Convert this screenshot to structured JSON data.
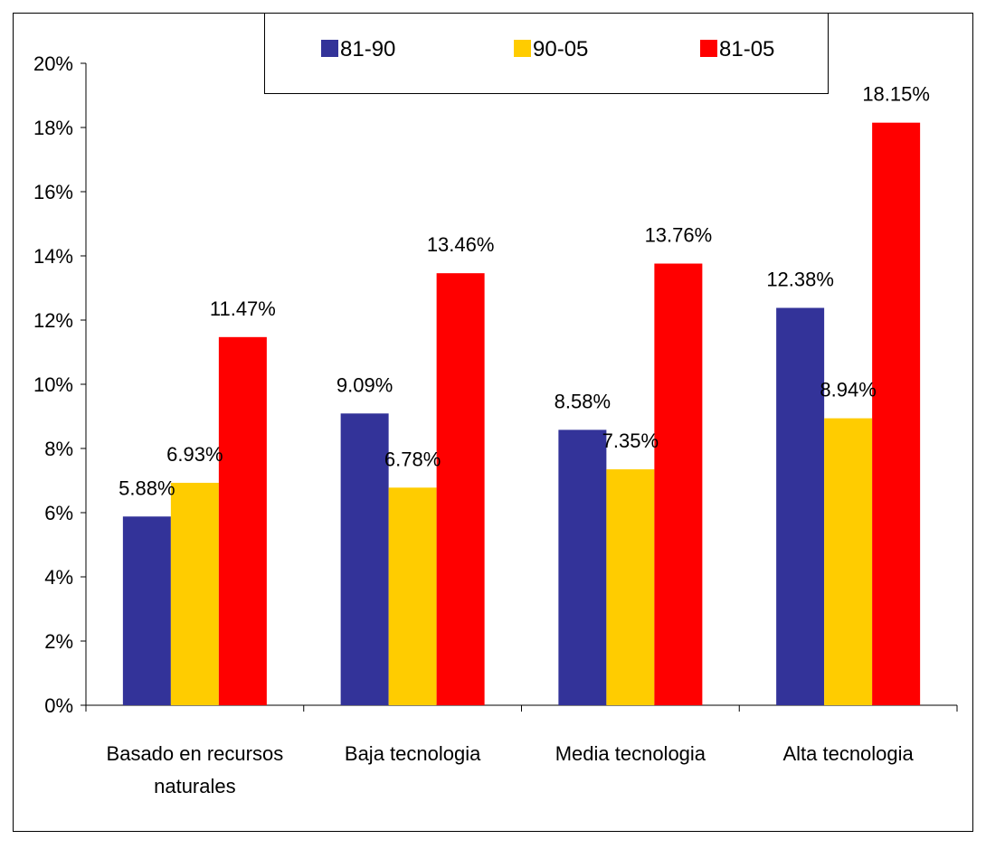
{
  "chart_data": {
    "type": "bar",
    "categories": [
      [
        "Basado en recursos",
        "naturales"
      ],
      [
        "Baja tecnologia"
      ],
      [
        "Media tecnologia"
      ],
      [
        "Alta tecnologia"
      ]
    ],
    "series": [
      {
        "name": "81-90",
        "color": "#333399",
        "values": [
          5.88,
          9.09,
          8.58,
          12.38
        ],
        "labels": [
          "5.88%",
          "9.09%",
          "8.58%",
          "12.38%"
        ]
      },
      {
        "name": "90-05",
        "color": "#FFCC00",
        "values": [
          6.93,
          6.78,
          7.35,
          8.94
        ],
        "labels": [
          "6.93%",
          "6.78%",
          "7.35%",
          "8.94%"
        ]
      },
      {
        "name": "81-05",
        "color": "#FF0000",
        "values": [
          11.47,
          13.46,
          13.76,
          18.15
        ],
        "labels": [
          "11.47%",
          "13.46%",
          "13.76%",
          "18.15%"
        ]
      }
    ],
    "y_ticks": [
      "0%",
      "2%",
      "4%",
      "6%",
      "8%",
      "10%",
      "12%",
      "14%",
      "16%",
      "18%",
      "20%"
    ],
    "ylim": [
      0,
      20
    ],
    "grid": false,
    "legend_position": "top"
  }
}
